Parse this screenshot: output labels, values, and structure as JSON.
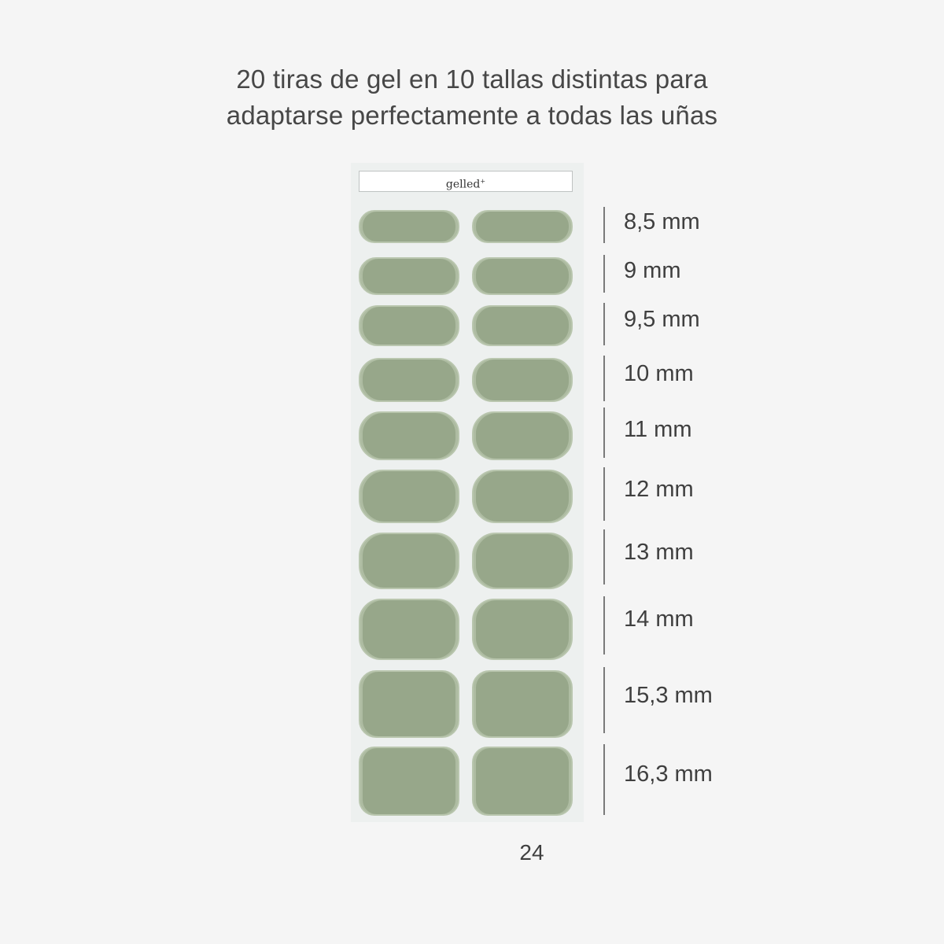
{
  "headline": {
    "line1": "20 tiras de gel en 10 tallas distintas para",
    "line2": "adaptarse perfectamente a todas las uñas"
  },
  "sheet": {
    "brand": "gelled",
    "brand_mark": "+"
  },
  "strip_color": "#97a78a",
  "sizes": [
    "8,5 mm",
    "9 mm",
    "9,5 mm",
    "10 mm",
    "11 mm",
    "12 mm",
    "13 mm",
    "14 mm",
    "15,3 mm",
    "16,3 mm"
  ],
  "page_number": "24"
}
